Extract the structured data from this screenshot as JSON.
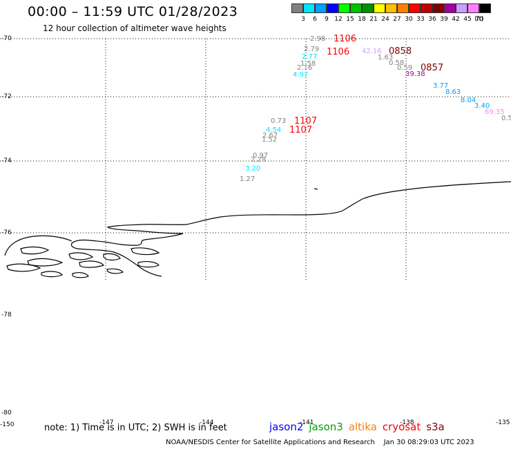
{
  "header": {
    "title": "00:00 – 11:59 UTC 01/28/2023",
    "subtitle": "12 hour collection of altimeter wave heights"
  },
  "legend": {
    "unit": "(ft)",
    "steps": [
      {
        "label": "3",
        "color": "#808080"
      },
      {
        "label": "6",
        "color": "#00e5ff"
      },
      {
        "label": "9",
        "color": "#00a0ff"
      },
      {
        "label": "12",
        "color": "#0000ff"
      },
      {
        "label": "15",
        "color": "#00ff00"
      },
      {
        "label": "18",
        "color": "#00c000"
      },
      {
        "label": "21",
        "color": "#009000"
      },
      {
        "label": "24",
        "color": "#ffff00"
      },
      {
        "label": "27",
        "color": "#ffc000"
      },
      {
        "label": "30",
        "color": "#ff8000"
      },
      {
        "label": "33",
        "color": "#ff0000"
      },
      {
        "label": "36",
        "color": "#c00000"
      },
      {
        "label": "39",
        "color": "#800000"
      },
      {
        "label": "42",
        "color": "#a000a0"
      },
      {
        "label": "45",
        "color": "#c8a0ff"
      },
      {
        "label": "70",
        "color": "#ff80ff"
      },
      {
        "label": "",
        "color": "#000000"
      }
    ]
  },
  "map": {
    "lat_labels": [
      "-70",
      "-72",
      "-74",
      "-76",
      "-78",
      "-80"
    ],
    "lon_labels": [
      "-150",
      "-147",
      "-144",
      "-141",
      "-138",
      "-135"
    ]
  },
  "observations": [
    {
      "value": "2.98",
      "color": "#808080"
    },
    {
      "value": "2.79",
      "color": "#808080"
    },
    {
      "value": "2.77",
      "color": "#00e5ff"
    },
    {
      "value": "1.58",
      "color": "#808080"
    },
    {
      "value": "2.16",
      "color": "#808080"
    },
    {
      "value": "4.97",
      "color": "#00e5ff"
    },
    {
      "value": "42.16",
      "color": "#c8a0ff"
    },
    {
      "value": "1.63",
      "color": "#808080"
    },
    {
      "value": "0.58",
      "color": "#808080"
    },
    {
      "value": "0.59",
      "color": "#808080"
    },
    {
      "value": "39.38",
      "color": "#a000a0"
    },
    {
      "value": "3.77",
      "color": "#00a0ff"
    },
    {
      "value": "8.63",
      "color": "#00a0ff"
    },
    {
      "value": "8.04",
      "color": "#00a0ff"
    },
    {
      "value": "3.40",
      "color": "#00a0ff"
    },
    {
      "value": "69.35",
      "color": "#ff80ff"
    },
    {
      "value": "0.5",
      "color": "#808080"
    },
    {
      "value": "0.73",
      "color": "#808080"
    },
    {
      "value": "4.54",
      "color": "#00e5ff"
    },
    {
      "value": "2.67",
      "color": "#808080"
    },
    {
      "value": "1.52",
      "color": "#808080"
    },
    {
      "value": "0.97",
      "color": "#808080"
    },
    {
      "value": "2.28",
      "color": "#808080"
    },
    {
      "value": "3.20",
      "color": "#00e5ff"
    },
    {
      "value": "1.27",
      "color": "#808080"
    }
  ],
  "pass_times": [
    {
      "value": "1106",
      "color": "#ff0000"
    },
    {
      "value": "1106",
      "color": "#ff0000"
    },
    {
      "value": "0858",
      "color": "#800000"
    },
    {
      "value": "0857",
      "color": "#800000"
    },
    {
      "value": "1107",
      "color": "#ff0000"
    },
    {
      "value": "1107",
      "color": "#ff0000"
    }
  ],
  "footer": {
    "note": "note: 1) Time is in UTC; 2) SWH is in feet",
    "satellites": [
      {
        "name": "jason2",
        "color": "#0000ff"
      },
      {
        "name": "jason3",
        "color": "#00a000"
      },
      {
        "name": "altika",
        "color": "#ff8000"
      },
      {
        "name": "cryosat",
        "color": "#ff0000"
      },
      {
        "name": "s3a",
        "color": "#800000"
      }
    ],
    "credit": "NOAA/NESDIS Center for Satellite Applications and Research    Jan 30 08:29:03 UTC 2023"
  }
}
